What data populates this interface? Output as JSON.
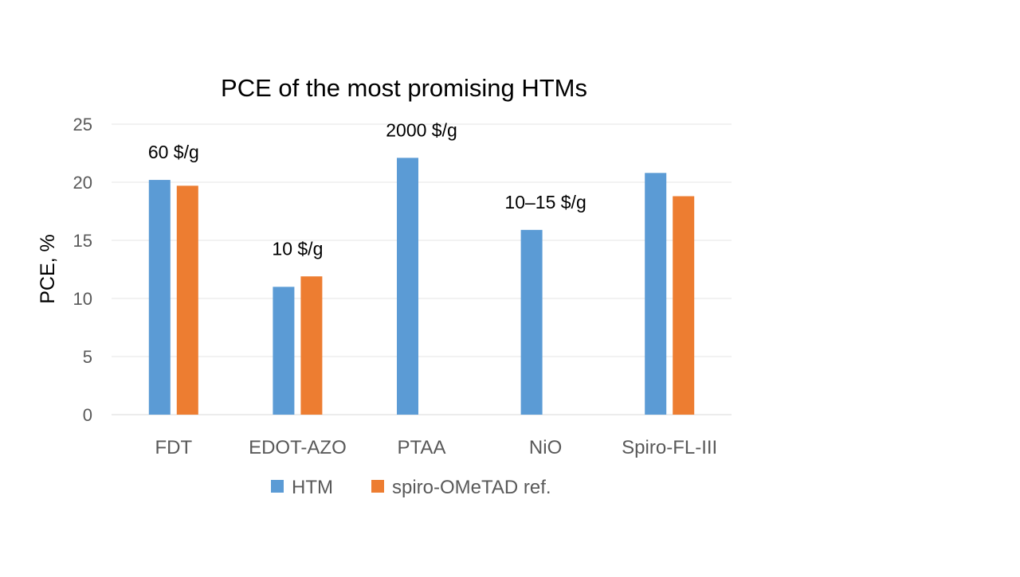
{
  "chart_data": {
    "type": "bar",
    "title": "PCE of the most promising HTMs",
    "xlabel": "",
    "ylabel": "PCE, %",
    "ylim": [
      0,
      25
    ],
    "yticks": [
      0,
      5,
      10,
      15,
      20,
      25
    ],
    "grid": true,
    "legend_position": "bottom",
    "categories": [
      "FDT",
      "EDOT-AZO",
      "PTAA",
      "NiO",
      "Spiro-FL-III"
    ],
    "series": [
      {
        "name": "HTM",
        "color": "#5b9bd5",
        "values": [
          20.2,
          11.0,
          22.1,
          15.9,
          20.8
        ]
      },
      {
        "name": "spiro-OMeTAD ref.",
        "color": "#ed7d31",
        "values": [
          19.7,
          11.9,
          null,
          null,
          18.8
        ]
      }
    ],
    "annotations": [
      "60 $/g",
      "10 $/g",
      "2000 $/g",
      "10–15 $/g",
      ""
    ]
  }
}
